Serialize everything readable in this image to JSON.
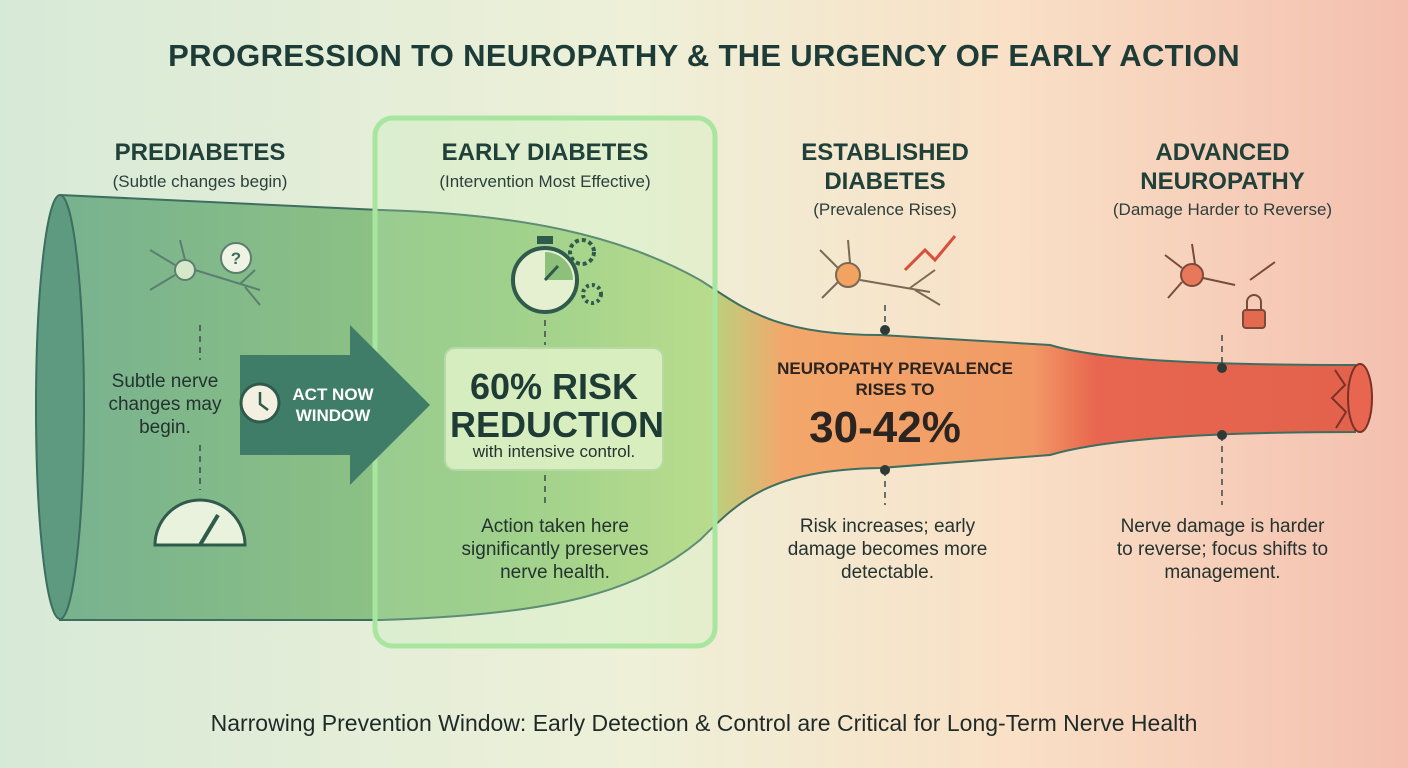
{
  "title": "PROGRESSION TO NEUROPATHY & THE URGENCY OF EARLY ACTION",
  "stages": [
    {
      "heading": "PREDIABETES",
      "subheading": "(Subtle changes begin)",
      "description": "Subtle nerve changes may begin."
    },
    {
      "heading": "EARLY DIABETES",
      "subheading": "(Intervention Most Effective)",
      "callout": {
        "headline": "60% RISK REDUCTION",
        "detail": "with intensive control."
      },
      "description": "Action taken here significantly preserves nerve health."
    },
    {
      "heading": "ESTABLISHED DIABETES",
      "subheading": "(Prevalence Rises)",
      "callout": {
        "headline": "NEUROPATHY PREVALENCE RISES TO",
        "figure": "30-42%"
      },
      "description": "Risk increases; early damage becomes more detectable."
    },
    {
      "heading": "ADVANCED NEUROPATHY",
      "subheading": "(Damage Harder to Reverse)",
      "description": "Nerve damage is harder to reverse; focus shifts to management."
    }
  ],
  "arrow_label": "ACT NOW WINDOW",
  "footer": "Narrowing Prevention Window: Early Detection & Control are Critical for Long-Term Nerve Health"
}
